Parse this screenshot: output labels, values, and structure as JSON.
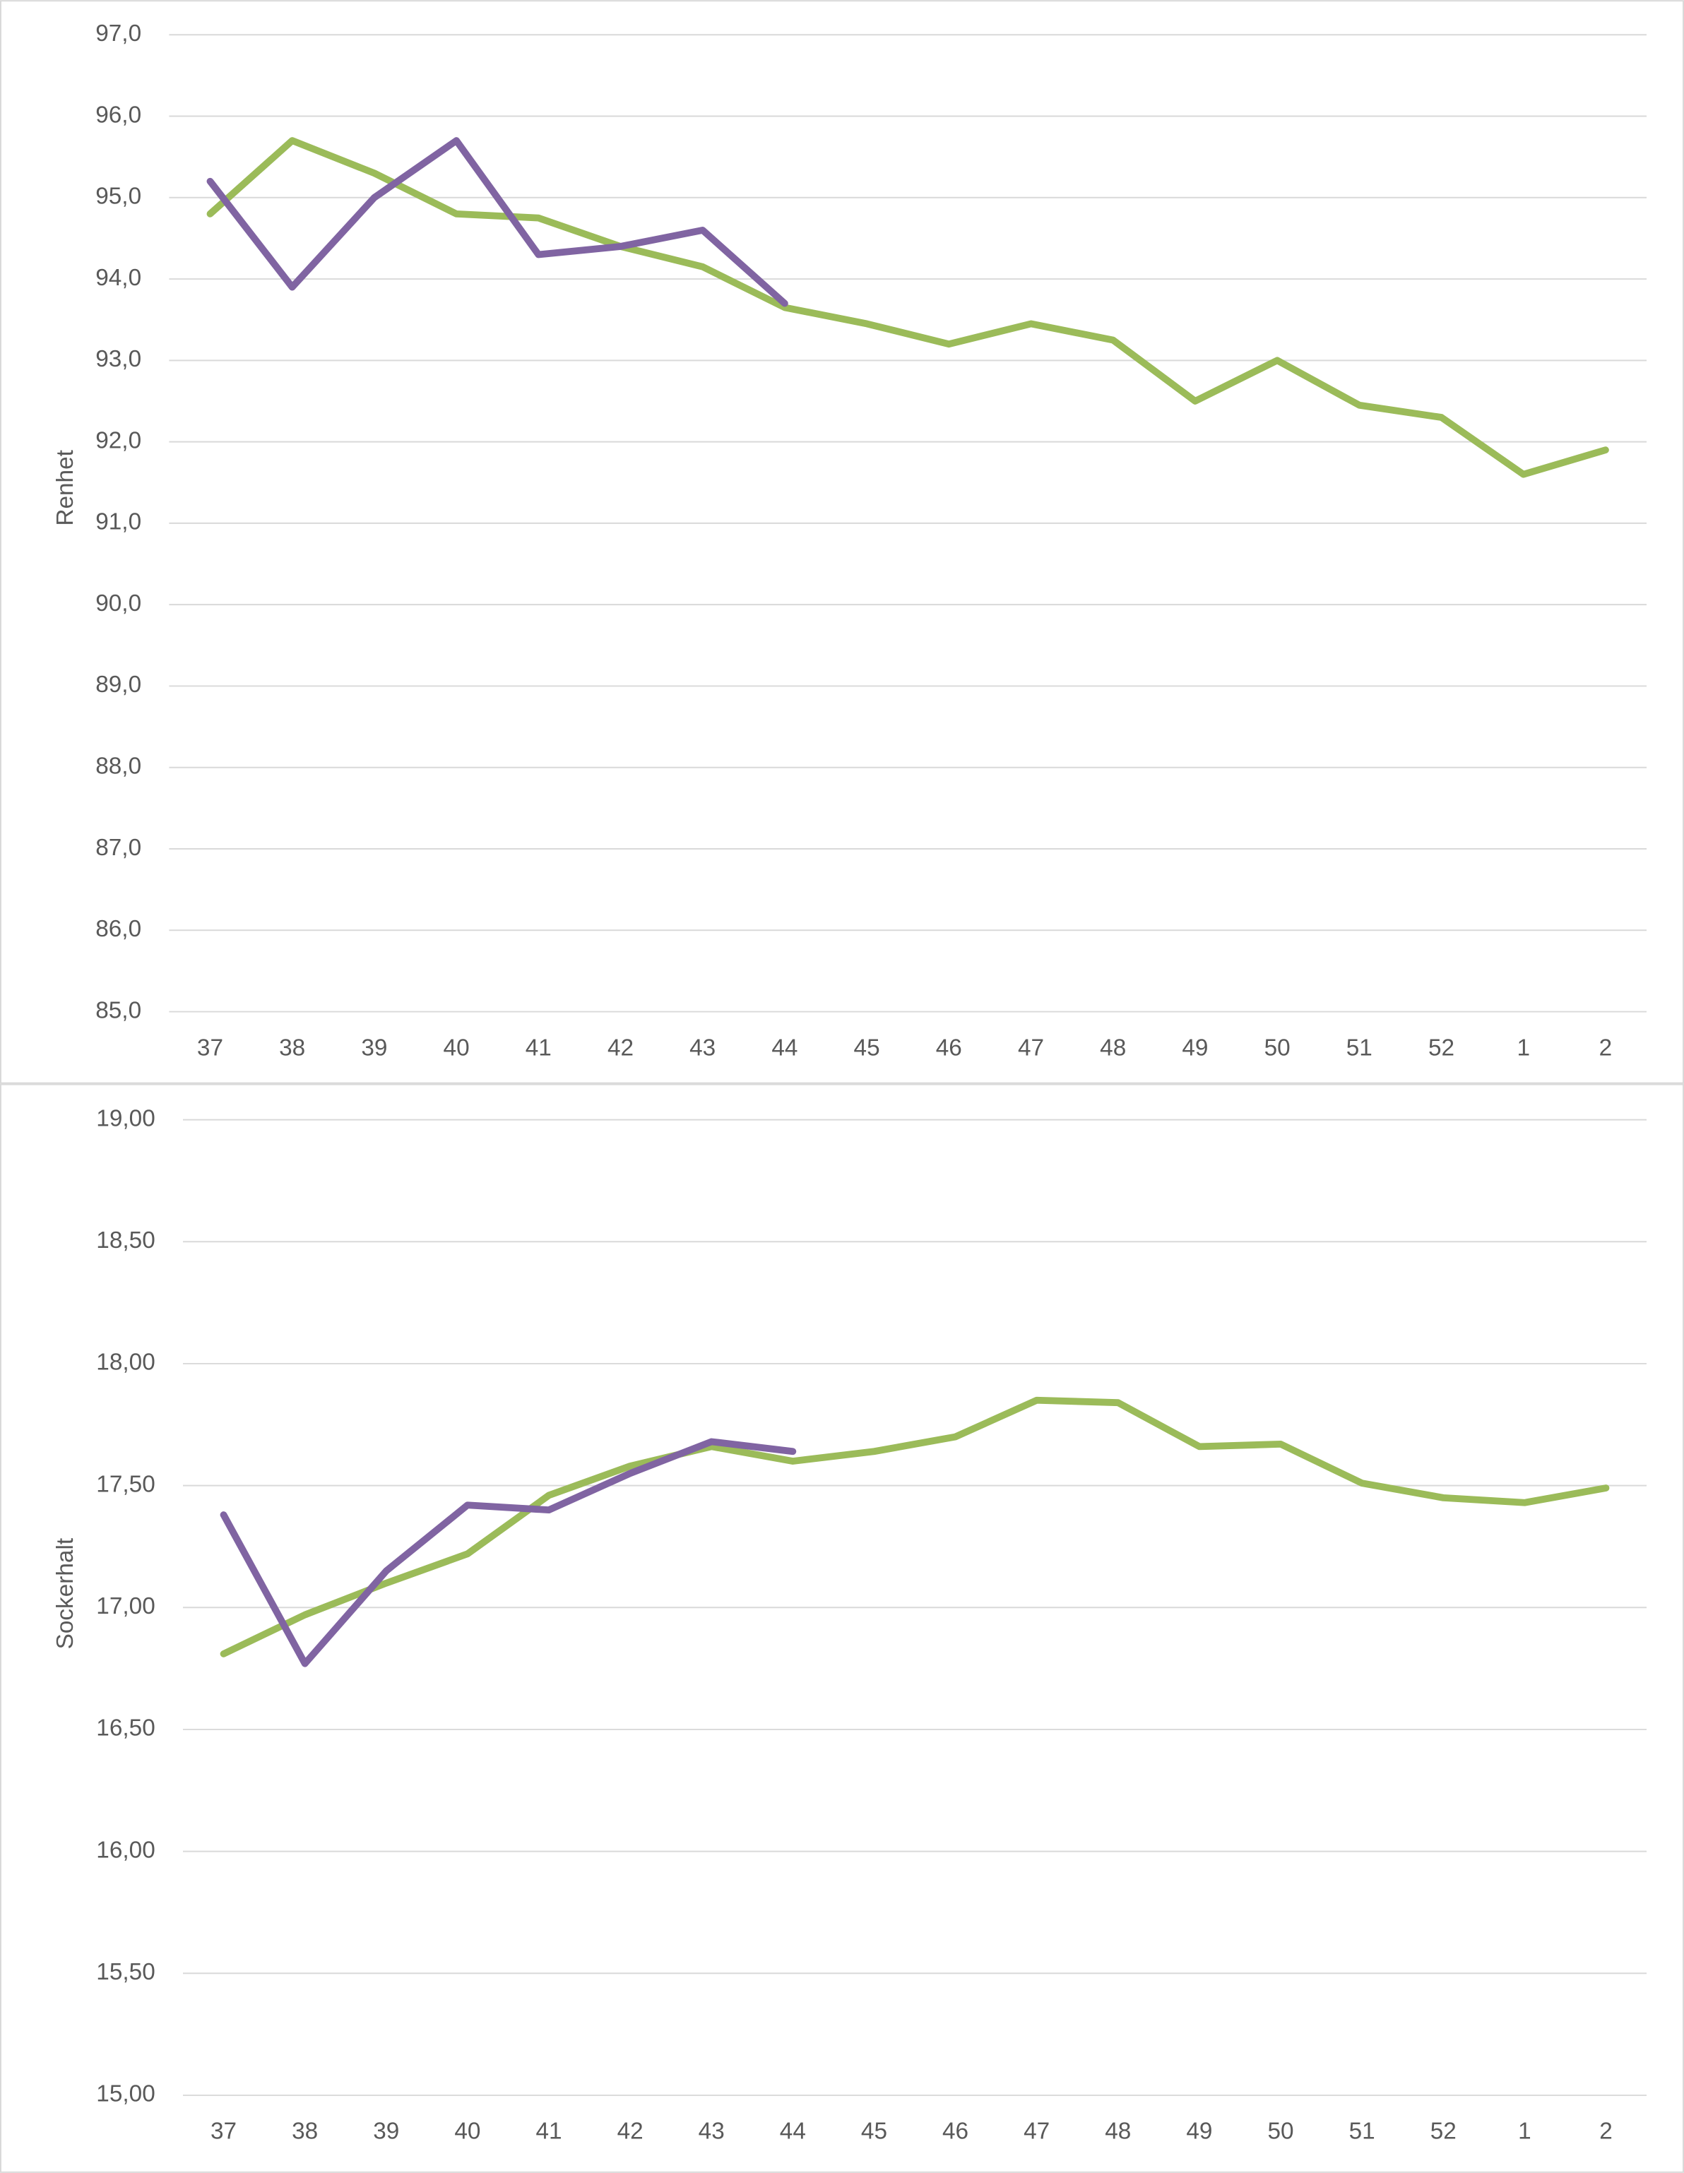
{
  "chart_data": [
    {
      "type": "line",
      "y_label": "Renhet",
      "categories": [
        "37",
        "38",
        "39",
        "40",
        "41",
        "42",
        "43",
        "44",
        "45",
        "46",
        "47",
        "48",
        "49",
        "50",
        "51",
        "52",
        "1",
        "2"
      ],
      "series": [
        {
          "color": "#9bbb59",
          "values": [
            94.8,
            95.7,
            95.3,
            94.8,
            94.75,
            94.4,
            94.15,
            93.65,
            93.45,
            93.2,
            93.45,
            93.25,
            92.5,
            93.0,
            92.45,
            92.3,
            91.6,
            91.9
          ]
        },
        {
          "color": "#8064a2",
          "values": [
            95.2,
            93.9,
            95.0,
            95.7,
            94.3,
            94.4,
            94.6,
            93.7,
            null,
            null,
            null,
            null,
            null,
            null,
            null,
            null,
            null,
            null
          ]
        }
      ],
      "ylim": [
        85,
        97
      ],
      "yticks": [
        {
          "value": 85,
          "label": "85,0"
        },
        {
          "value": 86,
          "label": "86,0"
        },
        {
          "value": 87,
          "label": "87,0"
        },
        {
          "value": 88,
          "label": "88,0"
        },
        {
          "value": 89,
          "label": "89,0"
        },
        {
          "value": 90,
          "label": "90,0"
        },
        {
          "value": 91,
          "label": "91,0"
        },
        {
          "value": 92,
          "label": "92,0"
        },
        {
          "value": 93,
          "label": "93,0"
        },
        {
          "value": 94,
          "label": "94,0"
        },
        {
          "value": 95,
          "label": "95,0"
        },
        {
          "value": 96,
          "label": "96,0"
        },
        {
          "value": 97,
          "label": "97,0"
        }
      ],
      "grid": true
    },
    {
      "type": "line",
      "y_label": "Sockerhalt",
      "categories": [
        "37",
        "38",
        "39",
        "40",
        "41",
        "42",
        "43",
        "44",
        "45",
        "46",
        "47",
        "48",
        "49",
        "50",
        "51",
        "52",
        "1",
        "2"
      ],
      "series": [
        {
          "color": "#9bbb59",
          "values": [
            16.81,
            16.97,
            17.1,
            17.22,
            17.46,
            17.58,
            17.66,
            17.6,
            17.64,
            17.7,
            17.85,
            17.84,
            17.66,
            17.67,
            17.51,
            17.45,
            17.43,
            17.49
          ]
        },
        {
          "color": "#8064a2",
          "values": [
            17.38,
            16.77,
            17.15,
            17.42,
            17.4,
            17.55,
            17.68,
            17.64,
            null,
            null,
            null,
            null,
            null,
            null,
            null,
            null,
            null,
            null
          ]
        }
      ],
      "ylim": [
        15,
        19
      ],
      "yticks": [
        {
          "value": 15,
          "label": "15,00"
        },
        {
          "value": 15.5,
          "label": "15,50"
        },
        {
          "value": 16,
          "label": "16,00"
        },
        {
          "value": 16.5,
          "label": "16,50"
        },
        {
          "value": 17,
          "label": "17,00"
        },
        {
          "value": 17.5,
          "label": "17,50"
        },
        {
          "value": 18,
          "label": "18,00"
        },
        {
          "value": 18.5,
          "label": "18,50"
        },
        {
          "value": 19,
          "label": "19,00"
        }
      ],
      "grid": true
    }
  ]
}
